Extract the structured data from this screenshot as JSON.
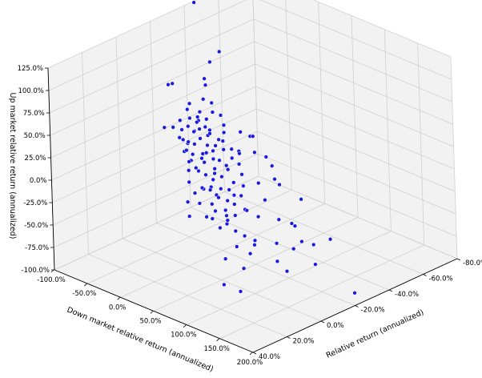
{
  "chart_data": {
    "type": "scatter",
    "projection": "3d",
    "grid": true,
    "marker_color": "#1a1adb",
    "xlabel": "Down market relative return (annualized)",
    "ylabel": "Relative return (annualized)",
    "zlabel": "Up market relative return (annualized)",
    "xlim": [
      -100,
      200
    ],
    "ylim": [
      -80,
      40
    ],
    "zlim": [
      -100,
      125
    ],
    "x_ticks": [
      "-100.0%",
      "-50.0%",
      "0.0%",
      "50.0%",
      "100.0%",
      "150.0%",
      "200.0%"
    ],
    "y_ticks": [
      "-80.0%",
      "-60.0%",
      "-40.0%",
      "-20.0%",
      "0.0%",
      "20.0%",
      "40.0%"
    ],
    "z_ticks": [
      "-100.0%",
      "-75.0%",
      "-50.0%",
      "-25.0%",
      "0.0%",
      "25.0%",
      "50.0%",
      "75.0%",
      "100.0%",
      "125.0%"
    ],
    "points": [
      {
        "x": -93,
        "y": -43,
        "z": 128
      },
      {
        "x": -54,
        "y": -42,
        "z": 86
      },
      {
        "x": -61,
        "y": -39,
        "z": 75
      },
      {
        "x": -94,
        "y": -27,
        "z": 50
      },
      {
        "x": -77,
        "y": -23,
        "z": 60
      },
      {
        "x": -49,
        "y": -31,
        "z": 67
      },
      {
        "x": -45,
        "y": -30,
        "z": 62
      },
      {
        "x": -78,
        "y": -18,
        "z": 15
      },
      {
        "x": -65,
        "y": -28,
        "z": 37
      },
      {
        "x": -67,
        "y": -23,
        "z": 22
      },
      {
        "x": -48,
        "y": -26,
        "z": 29
      },
      {
        "x": -50,
        "y": -18,
        "z": 10
      },
      {
        "x": -43,
        "y": -18,
        "z": 8
      },
      {
        "x": -40,
        "y": -21,
        "z": 20
      },
      {
        "x": -35,
        "y": -22,
        "z": 23
      },
      {
        "x": -22,
        "y": -23,
        "z": 25
      },
      {
        "x": -12,
        "y": -12,
        "z": -8
      },
      {
        "x": -18,
        "y": -17,
        "z": 5
      },
      {
        "x": -28,
        "y": -14,
        "z": -3
      },
      {
        "x": -14,
        "y": -23,
        "z": 10
      },
      {
        "x": 1,
        "y": -32,
        "z": 22
      },
      {
        "x": 13,
        "y": -33,
        "z": 20
      },
      {
        "x": 20,
        "y": -32,
        "z": 23
      },
      {
        "x": 11,
        "y": -27,
        "z": 8
      },
      {
        "x": 7,
        "y": -21,
        "z": -4
      },
      {
        "x": -6,
        "y": -19,
        "z": -15
      },
      {
        "x": -14,
        "y": -6,
        "z": -38
      },
      {
        "x": -12,
        "y": -19,
        "z": -32
      },
      {
        "x": -5,
        "y": -12,
        "z": -26
      },
      {
        "x": 1,
        "y": -1,
        "z": -45
      },
      {
        "x": 9,
        "y": -14,
        "z": -30
      },
      {
        "x": 14,
        "y": -6,
        "z": -46
      },
      {
        "x": 34,
        "y": -10,
        "z": -42
      },
      {
        "x": 25,
        "y": -7,
        "z": -37
      },
      {
        "x": 52,
        "y": -12,
        "z": -16
      },
      {
        "x": 58,
        "y": -20,
        "z": -7
      },
      {
        "x": 69,
        "y": -24,
        "z": 12
      },
      {
        "x": 83,
        "y": -20,
        "z": 5
      },
      {
        "x": 90,
        "y": -20,
        "z": 1
      },
      {
        "x": 52,
        "y": -14,
        "z": -33
      },
      {
        "x": 58,
        "y": -1,
        "z": -36
      },
      {
        "x": 66,
        "y": -8,
        "z": -53
      },
      {
        "x": 79,
        "y": -9,
        "z": -55
      },
      {
        "x": 80,
        "y": 2,
        "z": -52
      },
      {
        "x": 102,
        "y": 0,
        "z": -45
      },
      {
        "x": 107,
        "y": -20,
        "z": -37
      },
      {
        "x": 120,
        "y": -6,
        "z": -43
      },
      {
        "x": 135,
        "y": -10,
        "z": -48
      },
      {
        "x": 140,
        "y": -13,
        "z": -41
      },
      {
        "x": 165,
        "y": -11,
        "z": -57
      },
      {
        "x": 168,
        "y": -19,
        "z": -35
      },
      {
        "x": 93,
        "y": 15,
        "z": -79
      },
      {
        "x": 110,
        "y": 12,
        "z": -84
      },
      {
        "x": 200,
        "y": -20,
        "z": -86
      },
      {
        "x": -66,
        "y": -27,
        "z": 31
      },
      {
        "x": -60,
        "y": -26,
        "z": 24
      },
      {
        "x": -55,
        "y": -30,
        "z": 29
      },
      {
        "x": -55,
        "y": -23,
        "z": 19
      },
      {
        "x": -49,
        "y": -24,
        "z": 14
      },
      {
        "x": -45,
        "y": -30,
        "z": 24
      },
      {
        "x": -42,
        "y": -28,
        "z": 18
      },
      {
        "x": -38,
        "y": -20,
        "z": 7
      },
      {
        "x": -33,
        "y": -26,
        "z": 13
      },
      {
        "x": -29,
        "y": -24,
        "z": 5
      },
      {
        "x": -36,
        "y": -18,
        "z": -2
      },
      {
        "x": -25,
        "y": -19,
        "z": -4
      },
      {
        "x": -30,
        "y": -26,
        "z": 16
      },
      {
        "x": -22,
        "y": -28,
        "z": 10
      },
      {
        "x": -18,
        "y": -23,
        "z": 3
      },
      {
        "x": -44,
        "y": -25,
        "z": 27
      },
      {
        "x": -50,
        "y": -21,
        "z": 5
      },
      {
        "x": -58,
        "y": -19,
        "z": 9
      },
      {
        "x": -46,
        "y": -17,
        "z": -1
      },
      {
        "x": -40,
        "y": -16,
        "z": 3
      },
      {
        "x": -34,
        "y": -15,
        "z": -7
      },
      {
        "x": -27,
        "y": -12,
        "z": -12
      },
      {
        "x": -21,
        "y": -14,
        "z": -9
      },
      {
        "x": -16,
        "y": -17,
        "z": -4
      },
      {
        "x": -10,
        "y": -20,
        "z": -1
      },
      {
        "x": -9,
        "y": -15,
        "z": -14
      },
      {
        "x": -3,
        "y": -18,
        "z": -8
      },
      {
        "x": 2,
        "y": -15,
        "z": -16
      },
      {
        "x": -2,
        "y": -10,
        "z": -22
      },
      {
        "x": 5,
        "y": -12,
        "z": -24
      },
      {
        "x": 10,
        "y": -17,
        "z": -12
      },
      {
        "x": 16,
        "y": -14,
        "z": -21
      },
      {
        "x": 20,
        "y": -11,
        "z": -27
      },
      {
        "x": 26,
        "y": -15,
        "z": -20
      },
      {
        "x": 31,
        "y": -12,
        "z": -28
      },
      {
        "x": 38,
        "y": -8,
        "z": -33
      },
      {
        "x": 44,
        "y": -11,
        "z": -27
      },
      {
        "x": 46,
        "y": -6,
        "z": -40
      },
      {
        "x": 40,
        "y": -18,
        "z": -14
      },
      {
        "x": 33,
        "y": -20,
        "z": -5
      },
      {
        "x": 24,
        "y": -22,
        "z": 2
      },
      {
        "x": 17,
        "y": -25,
        "z": 9
      },
      {
        "x": 8,
        "y": -24,
        "z": 2
      },
      {
        "x": 0,
        "y": -27,
        "z": 7
      },
      {
        "x": -7,
        "y": -25,
        "z": 6
      },
      {
        "x": -13,
        "y": -27,
        "z": 12
      },
      {
        "x": -19,
        "y": -30,
        "z": 17
      },
      {
        "x": -24,
        "y": -32,
        "z": 22
      },
      {
        "x": -31,
        "y": -33,
        "z": 30
      },
      {
        "x": -38,
        "y": -31,
        "z": 33
      },
      {
        "x": -47,
        "y": -34,
        "z": 38
      },
      {
        "x": -57,
        "y": -33,
        "z": 40
      },
      {
        "x": -62,
        "y": -22,
        "z": 14
      },
      {
        "x": -70,
        "y": -20,
        "z": 16
      },
      {
        "x": -52,
        "y": -27,
        "z": 21
      },
      {
        "x": -37,
        "y": -23,
        "z": 11
      },
      {
        "x": -23,
        "y": -21,
        "z": 1
      },
      {
        "x": -6,
        "y": -22,
        "z": -3
      },
      {
        "x": 12,
        "y": -20,
        "z": -6
      },
      {
        "x": 28,
        "y": -17,
        "z": -13
      },
      {
        "x": 36,
        "y": -14,
        "z": -22
      },
      {
        "x": 50,
        "y": -9,
        "z": -36
      },
      {
        "x": 60,
        "y": -12,
        "z": -30
      },
      {
        "x": 72,
        "y": -14,
        "z": -35
      },
      {
        "x": 63,
        "y": -4,
        "z": -45
      },
      {
        "x": 42,
        "y": -3,
        "z": -47
      },
      {
        "x": 28,
        "y": -4,
        "z": -42
      },
      {
        "x": 15,
        "y": -9,
        "z": -34
      },
      {
        "x": 4,
        "y": -6,
        "z": -34
      },
      {
        "x": -8,
        "y": -8,
        "z": -28
      },
      {
        "x": -19,
        "y": -9,
        "z": -20
      },
      {
        "x": 98,
        "y": -16,
        "z": -32
      },
      {
        "x": 125,
        "y": -15,
        "z": -30
      },
      {
        "x": 150,
        "y": -16,
        "z": -44
      },
      {
        "x": 128,
        "y": -3,
        "z": -58
      },
      {
        "x": 87,
        "y": -3,
        "z": -62
      },
      {
        "x": 55,
        "y": -26,
        "z": 16
      },
      {
        "x": 35,
        "y": -27,
        "z": 14
      },
      {
        "x": 75,
        "y": -17,
        "z": -18
      },
      {
        "x": 112,
        "y": -24,
        "z": -12
      },
      {
        "x": 95,
        "y": 4,
        "z": -70
      },
      {
        "x": 70,
        "y": 5,
        "z": -66
      },
      {
        "x": 145,
        "y": -2,
        "z": -63
      }
    ]
  }
}
